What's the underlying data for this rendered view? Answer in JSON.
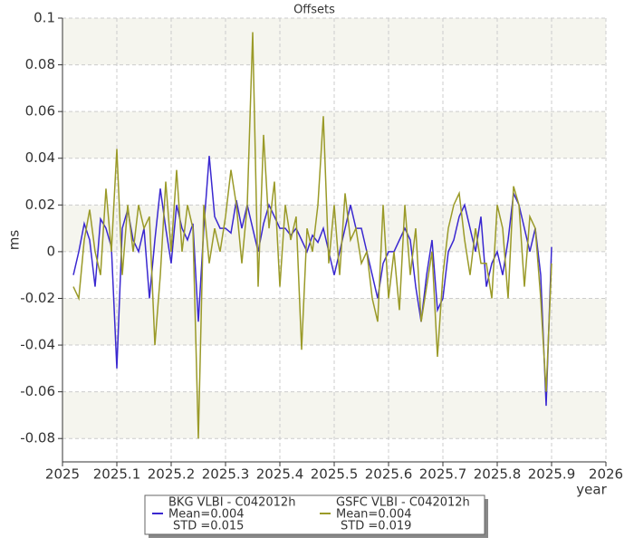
{
  "chart_data": {
    "type": "line",
    "title": "Offsets",
    "x_label": "year",
    "y_label": "ms",
    "x": [
      2025.02,
      2025.03,
      2025.04,
      2025.05,
      2025.06,
      2025.07,
      2025.08,
      2025.09,
      2025.1,
      2025.11,
      2025.12,
      2025.13,
      2025.14,
      2025.15,
      2025.16,
      2025.17,
      2025.18,
      2025.19,
      2025.2,
      2025.21,
      2025.22,
      2025.23,
      2025.24,
      2025.25,
      2025.26,
      2025.27,
      2025.28,
      2025.29,
      2025.3,
      2025.31,
      2025.32,
      2025.33,
      2025.34,
      2025.35,
      2025.36,
      2025.37,
      2025.38,
      2025.39,
      2025.4,
      2025.41,
      2025.42,
      2025.43,
      2025.44,
      2025.45,
      2025.46,
      2025.47,
      2025.48,
      2025.49,
      2025.5,
      2025.51,
      2025.52,
      2025.53,
      2025.54,
      2025.55,
      2025.56,
      2025.57,
      2025.58,
      2025.59,
      2025.6,
      2025.61,
      2025.62,
      2025.63,
      2025.64,
      2025.65,
      2025.66,
      2025.67,
      2025.68,
      2025.69,
      2025.7,
      2025.71,
      2025.72,
      2025.73,
      2025.74,
      2025.75,
      2025.76,
      2025.77,
      2025.78,
      2025.79,
      2025.8,
      2025.81,
      2025.82,
      2025.83,
      2025.84,
      2025.85,
      2025.86,
      2025.87,
      2025.88,
      2025.89,
      2025.9
    ],
    "series": [
      {
        "name": "BKG VLBI - C042012h",
        "color": "#3a28d0",
        "stats": [
          "Mean=0.004",
          "STD =0.015"
        ],
        "values": [
          -0.01,
          0.0,
          0.012,
          0.005,
          -0.015,
          0.014,
          0.01,
          0.002,
          -0.05,
          0.01,
          0.018,
          0.005,
          0.0,
          0.01,
          -0.02,
          0.005,
          0.027,
          0.01,
          -0.005,
          0.02,
          0.01,
          0.005,
          0.012,
          -0.03,
          0.01,
          0.041,
          0.015,
          0.01,
          0.01,
          0.008,
          0.022,
          0.01,
          0.02,
          0.01,
          0.0,
          0.012,
          0.02,
          0.015,
          0.01,
          0.01,
          0.007,
          0.01,
          0.005,
          0.0,
          0.007,
          0.004,
          0.01,
          0.0,
          -0.01,
          0.0,
          0.01,
          0.02,
          0.01,
          0.01,
          0.0,
          -0.01,
          -0.02,
          -0.005,
          0.0,
          0.0,
          0.005,
          0.01,
          0.005,
          -0.015,
          -0.03,
          -0.01,
          0.005,
          -0.025,
          -0.02,
          0.0,
          0.005,
          0.015,
          0.02,
          0.01,
          0.0,
          0.015,
          -0.015,
          -0.005,
          0.0,
          -0.01,
          0.005,
          0.025,
          0.02,
          0.01,
          0.0,
          0.01,
          -0.01,
          -0.066,
          0.002
        ]
      },
      {
        "name": "GSFC VLBI - C042012h",
        "color": "#9a9a28",
        "stats": [
          "Mean=0.004",
          "STD =0.019"
        ],
        "values": [
          -0.015,
          -0.02,
          0.005,
          0.018,
          0.0,
          -0.01,
          0.027,
          0.0,
          0.044,
          -0.01,
          0.02,
          0.0,
          0.02,
          0.01,
          0.015,
          -0.04,
          -0.01,
          0.03,
          0.0,
          0.035,
          0.0,
          0.02,
          0.01,
          -0.08,
          0.02,
          -0.005,
          0.01,
          0.0,
          0.015,
          0.035,
          0.02,
          -0.005,
          0.02,
          0.094,
          -0.015,
          0.05,
          0.01,
          0.03,
          -0.015,
          0.02,
          0.005,
          0.015,
          -0.042,
          0.01,
          0.0,
          0.02,
          0.058,
          -0.005,
          0.02,
          -0.01,
          0.025,
          0.005,
          0.01,
          -0.005,
          0.0,
          -0.02,
          -0.03,
          0.02,
          -0.02,
          0.0,
          -0.025,
          0.02,
          -0.01,
          0.01,
          -0.03,
          -0.015,
          0.0,
          -0.045,
          -0.01,
          0.01,
          0.02,
          0.025,
          0.005,
          -0.01,
          0.01,
          -0.005,
          -0.005,
          -0.02,
          0.02,
          0.01,
          -0.02,
          0.028,
          0.02,
          -0.015,
          0.015,
          0.01,
          -0.02,
          -0.06,
          -0.005
        ]
      }
    ],
    "xlim": [
      2025,
      2026
    ],
    "xticks": [
      2025,
      2025.1,
      2025.2,
      2025.3,
      2025.4,
      2025.5,
      2025.6,
      2025.7,
      2025.8,
      2025.9,
      2026
    ],
    "ylim": [
      -0.09,
      0.1
    ],
    "yticks": [
      -0.08,
      -0.06,
      -0.04,
      -0.02,
      0,
      0.02,
      0.04,
      0.06,
      0.08,
      0.1
    ],
    "grid": true
  }
}
